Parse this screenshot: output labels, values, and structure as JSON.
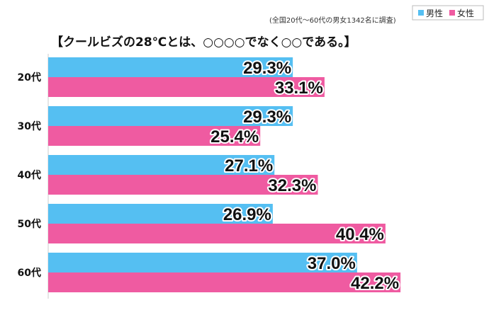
{
  "note": "(全国20代～60代の男女1342名に調査)",
  "title": "【クールビズの28℃とは、○○○○でなく○○である。】",
  "colors": {
    "male": "#55bff2",
    "female": "#ef5ba1"
  },
  "chart_data": {
    "type": "bar",
    "orientation": "horizontal",
    "categories": [
      "20代",
      "30代",
      "40代",
      "50代",
      "60代"
    ],
    "series": [
      {
        "name": "男性",
        "values": [
          29.3,
          29.3,
          27.1,
          26.9,
          37.0
        ],
        "labels": [
          "29.3%",
          "29.3%",
          "27.1%",
          "26.9%",
          "37.0%"
        ]
      },
      {
        "name": "女性",
        "values": [
          33.1,
          25.4,
          32.3,
          40.4,
          42.2
        ],
        "labels": [
          "33.1%",
          "25.4%",
          "32.3%",
          "40.4%",
          "42.2%"
        ]
      }
    ],
    "xlim": [
      0,
      50
    ],
    "legend_position": "top-right",
    "grid": false
  }
}
